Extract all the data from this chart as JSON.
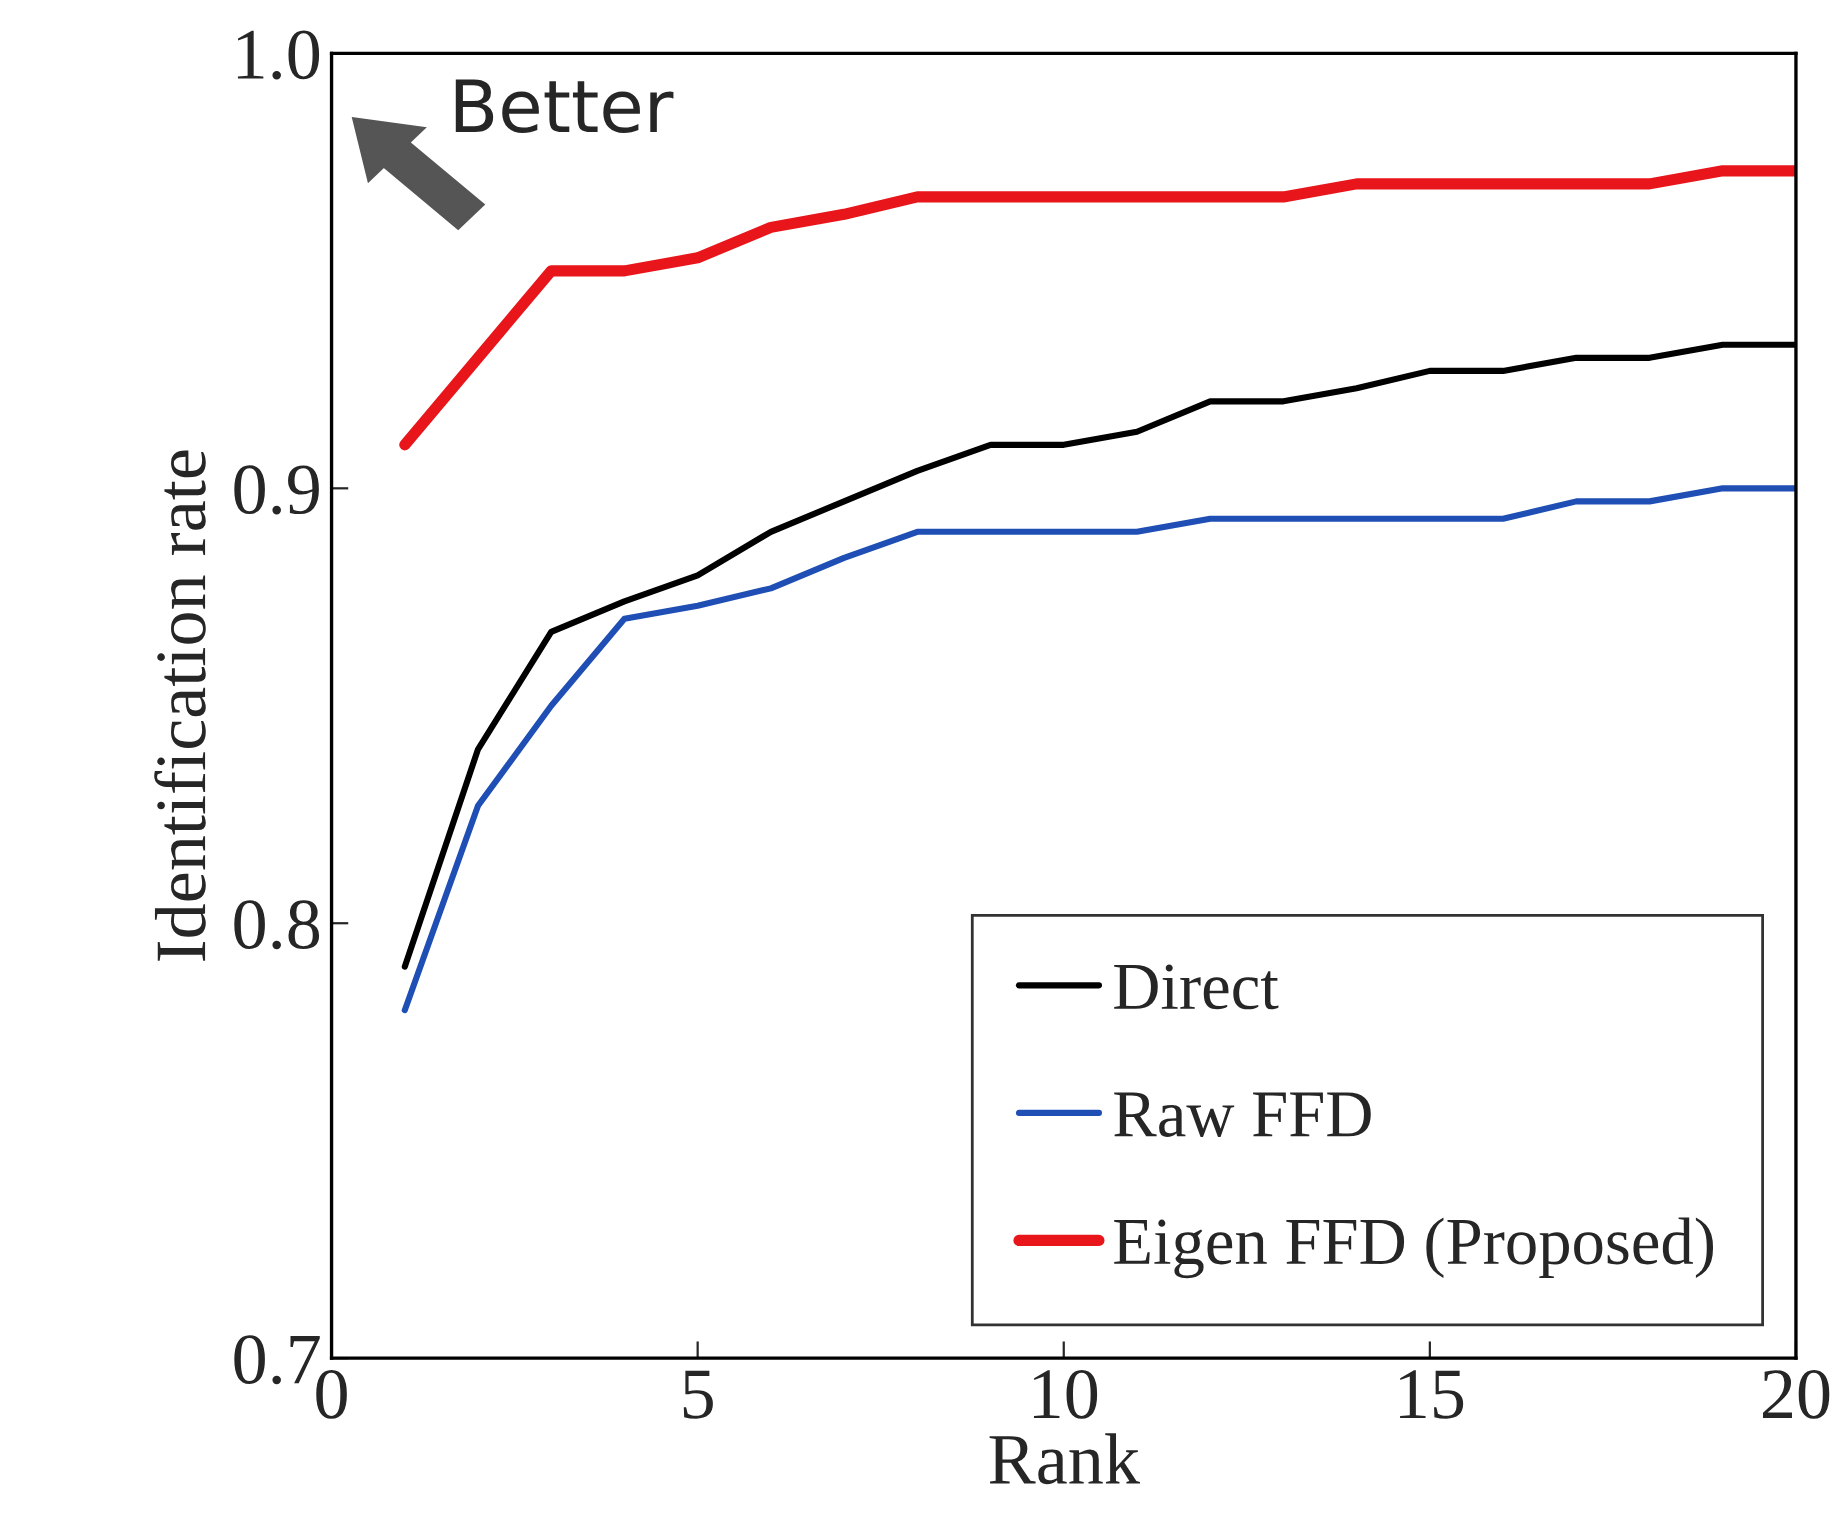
{
  "chart_data": {
    "type": "line",
    "xlabel": "Rank",
    "ylabel": "Identification rate",
    "x": [
      1,
      2,
      3,
      4,
      5,
      6,
      7,
      8,
      9,
      10,
      11,
      12,
      13,
      14,
      15,
      16,
      17,
      18,
      19,
      20
    ],
    "series": [
      {
        "name": "Direct",
        "color": "#000000",
        "values": [
          0.79,
          0.84,
          0.867,
          0.874,
          0.88,
          0.89,
          0.897,
          0.904,
          0.91,
          0.91,
          0.913,
          0.92,
          0.92,
          0.923,
          0.927,
          0.927,
          0.93,
          0.93,
          0.933,
          0.933
        ]
      },
      {
        "name": "Raw FFD",
        "color": "#1f4fb4",
        "values": [
          0.78,
          0.827,
          0.85,
          0.87,
          0.873,
          0.877,
          0.884,
          0.89,
          0.89,
          0.89,
          0.89,
          0.893,
          0.893,
          0.893,
          0.893,
          0.893,
          0.897,
          0.897,
          0.9,
          0.9
        ]
      },
      {
        "name": "Eigen FFD (Proposed)",
        "color": "#e8161b",
        "values": [
          0.91,
          0.93,
          0.95,
          0.95,
          0.953,
          0.96,
          0.963,
          0.967,
          0.967,
          0.967,
          0.967,
          0.967,
          0.967,
          0.97,
          0.97,
          0.97,
          0.97,
          0.97,
          0.973,
          0.973
        ]
      }
    ],
    "xlim": [
      0,
      20
    ],
    "ylim": [
      0.7,
      1.0
    ],
    "xticks": [
      0,
      5,
      10,
      15,
      20
    ],
    "yticks": [
      {
        "value": 0.7,
        "label": "0.7"
      },
      {
        "value": 0.8,
        "label": "0.8"
      },
      {
        "value": 0.9,
        "label": "0.9"
      },
      {
        "value": 1.0,
        "label": "1.0"
      }
    ],
    "annotations": [
      "Better"
    ],
    "legend": "bottom right",
    "grid": false,
    "marker": "none",
    "line_style": "solid"
  }
}
